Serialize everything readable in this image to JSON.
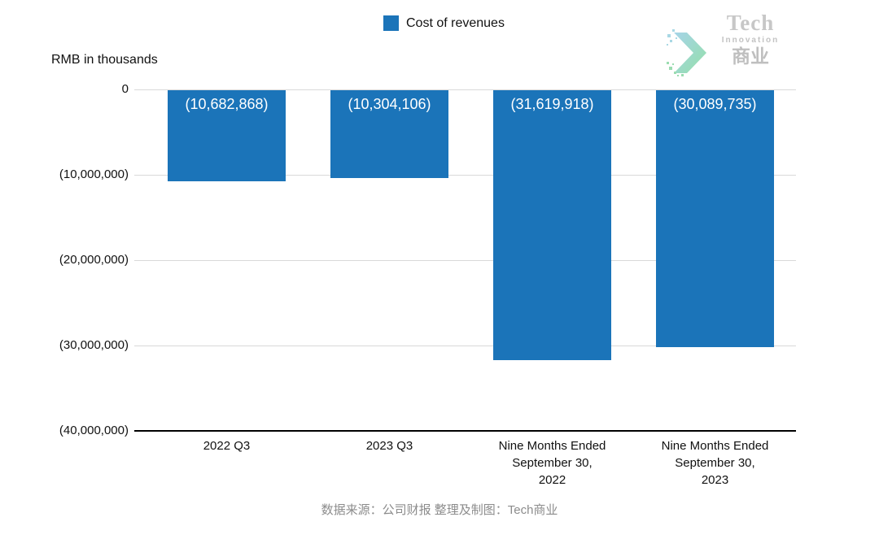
{
  "chart_data": {
    "type": "bar",
    "title": "",
    "legend": "Cost of revenues",
    "ylabel": "RMB in thousands",
    "categories": [
      "2022 Q3",
      "2023 Q3",
      "Nine Months Ended\nSeptember 30,\n2022",
      "Nine Months Ended\nSeptember 30,\n2023"
    ],
    "values": [
      -10682868,
      -10304106,
      -31619918,
      -30089735
    ],
    "value_labels": [
      "(10,682,868)",
      "(10,304,106)",
      "(31,619,918)",
      "(30,089,735)"
    ],
    "y_ticks": [
      "0",
      "(10,000,000)",
      "(20,000,000)",
      "(30,000,000)",
      "(40,000,000)"
    ],
    "ylim": [
      -40000000,
      0
    ],
    "grid": true,
    "legend_position": "top-center",
    "bar_color": "#1b74b9"
  },
  "logo": {
    "name": "Tech",
    "sub": "Innovation",
    "cn": "商业"
  },
  "footer": {
    "source": "数据来源：公司财报 整理及制图：Tech商业"
  }
}
